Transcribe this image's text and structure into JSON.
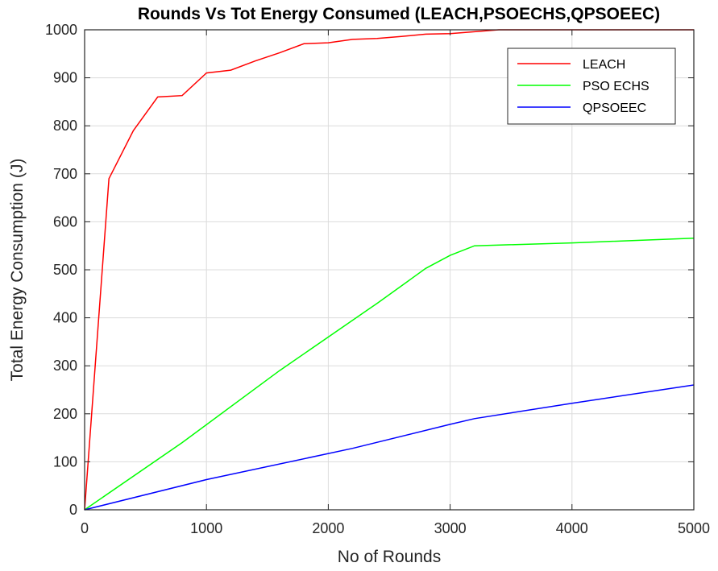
{
  "chart_data": {
    "type": "line",
    "title": "Rounds Vs Tot Energy Consumed (LEACH,PSOECHS,QPSOEEC)",
    "xlabel": "No of Rounds",
    "ylabel": "Total Energy Consumption (J)",
    "xlim": [
      0,
      5000
    ],
    "ylim": [
      0,
      1000
    ],
    "xticks": [
      0,
      1000,
      2000,
      3000,
      4000,
      5000
    ],
    "yticks": [
      0,
      100,
      200,
      300,
      400,
      500,
      600,
      700,
      800,
      900,
      1000
    ],
    "grid": true,
    "legend_position": "top-right",
    "series": [
      {
        "name": "LEACH",
        "color": "#ff0000",
        "x": [
          0,
          200,
          400,
          600,
          800,
          1000,
          1200,
          1400,
          1600,
          1800,
          2000,
          2200,
          2400,
          2600,
          2800,
          3000,
          3200,
          3400,
          3600,
          4000,
          5000
        ],
        "y": [
          0,
          690,
          790,
          860,
          863,
          910,
          916,
          935,
          952,
          971,
          973,
          980,
          982,
          986,
          991,
          992,
          996,
          1000,
          1000,
          1000,
          1000
        ]
      },
      {
        "name": "PSO ECHS",
        "color": "#00ff00",
        "x": [
          0,
          800,
          1600,
          2400,
          2800,
          3000,
          3200,
          4000,
          5000
        ],
        "y": [
          0,
          140,
          290,
          430,
          503,
          530,
          550,
          556,
          566
        ]
      },
      {
        "name": "QPSOEEC",
        "color": "#0000ff",
        "x": [
          0,
          1000,
          2200,
          3000,
          3200,
          4000,
          5000
        ],
        "y": [
          0,
          63,
          128,
          178,
          190,
          222,
          260
        ]
      }
    ]
  }
}
